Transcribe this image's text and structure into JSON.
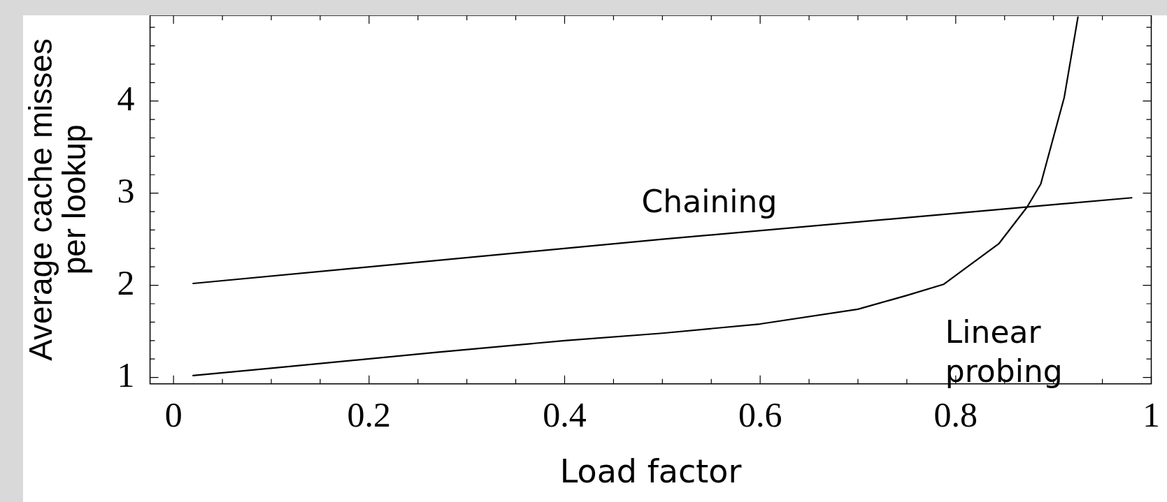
{
  "chart_data": {
    "type": "line",
    "xlabel": "Load factor",
    "ylabel": "Average cache misses\nper lookup",
    "xlim": [
      -0.024,
      1.0
    ],
    "ylim": [
      0.93,
      4.93
    ],
    "xticks": [
      0,
      {
        "value": 0.05,
        "label": null
      },
      {
        "value": 0.1,
        "label": null
      },
      {
        "value": 0.15,
        "label": null
      },
      0.2,
      {
        "value": 0.25,
        "label": null
      },
      {
        "value": 0.3,
        "label": null
      },
      {
        "value": 0.35,
        "label": null
      },
      0.4,
      {
        "value": 0.45,
        "label": null
      },
      {
        "value": 0.5,
        "label": null
      },
      {
        "value": 0.55,
        "label": null
      },
      0.6,
      {
        "value": 0.65,
        "label": null
      },
      {
        "value": 0.7,
        "label": null
      },
      {
        "value": 0.75,
        "label": null
      },
      0.8,
      {
        "value": 0.85,
        "label": null
      },
      {
        "value": 0.9,
        "label": null
      },
      {
        "value": 0.95,
        "label": null
      },
      1
    ],
    "yticks": [
      1,
      {
        "value": 1.2,
        "label": null
      },
      {
        "value": 1.4,
        "label": null
      },
      {
        "value": 1.6,
        "label": null
      },
      {
        "value": 1.8,
        "label": null
      },
      2,
      {
        "value": 2.2,
        "label": null
      },
      {
        "value": 2.4,
        "label": null
      },
      {
        "value": 2.6,
        "label": null
      },
      {
        "value": 2.8,
        "label": null
      },
      3,
      {
        "value": 3.2,
        "label": null
      },
      {
        "value": 3.4,
        "label": null
      },
      {
        "value": 3.6,
        "label": null
      },
      {
        "value": 3.8,
        "label": null
      },
      4,
      {
        "value": 4.2,
        "label": null
      },
      {
        "value": 4.4,
        "label": null
      },
      {
        "value": 4.6,
        "label": null
      },
      {
        "value": 4.8,
        "label": null
      }
    ],
    "grid": false,
    "legend": false,
    "marker": "none",
    "line_style": "solid",
    "series": [
      {
        "name": "Chaining",
        "color": "#000000",
        "x": [
          0.02,
          0.5,
          0.98
        ],
        "values": [
          2.02,
          2.5,
          2.95
        ]
      },
      {
        "name": "Linear probing",
        "color": "#000000",
        "x": [
          0.02,
          0.1,
          0.267,
          0.4,
          0.5,
          0.6,
          0.7,
          0.75,
          0.7875,
          0.844,
          0.873,
          0.887,
          0.911,
          0.925
        ],
        "values": [
          1.02,
          1.1,
          1.27,
          1.4,
          1.48,
          1.58,
          1.74,
          1.89,
          2.01,
          2.45,
          2.85,
          3.1,
          4.04,
          4.91
        ]
      }
    ]
  }
}
